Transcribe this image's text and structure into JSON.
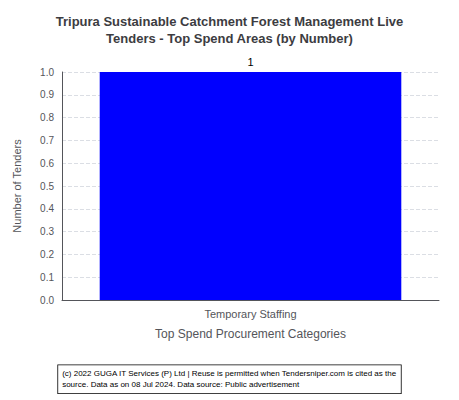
{
  "chart_data": {
    "type": "bar",
    "title": "Tripura Sustainable Catchment Forest Management Live\nTenders - Top Spend Areas (by Number)",
    "categories": [
      "Temporary Staffing"
    ],
    "values": [
      1
    ],
    "color": "#0000FF",
    "xlabel": "Top Spend Procurement Categories",
    "ylabel": "Number of Tenders",
    "ylim": [
      0,
      1.0
    ],
    "yticks": [
      {
        "value": 0,
        "label": "0.0"
      },
      0.1,
      0.2,
      0.3,
      0.4,
      0.5,
      0.6,
      0.7,
      0.8,
      0.9,
      {
        "value": 1,
        "label": "1.0"
      }
    ],
    "grid": true,
    "data_labels": true,
    "annotations": [
      "(c) 2022 GUGA IT Services (P) Ltd | Reuse is permitted when Tendersniper.com is cited as the\nsource. Data as on 08 Jul 2024. Data source: Public advertisement"
    ]
  }
}
